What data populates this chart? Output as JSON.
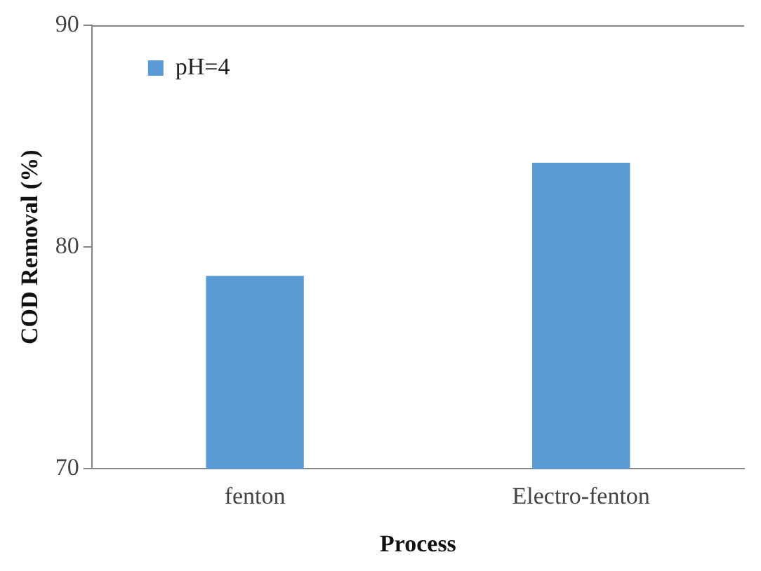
{
  "chart_data": {
    "type": "bar",
    "xlabel": "Process",
    "ylabel": "COD Removal (%)",
    "categories": [
      "fenton",
      "Electro-fenton"
    ],
    "series": [
      {
        "name": "pH=4",
        "color": "#5b9bd5",
        "values": [
          78.7,
          83.8
        ]
      }
    ],
    "ylim": [
      70,
      90
    ],
    "yticks": [
      70,
      80,
      90
    ],
    "grid": false,
    "legend": "top left"
  }
}
